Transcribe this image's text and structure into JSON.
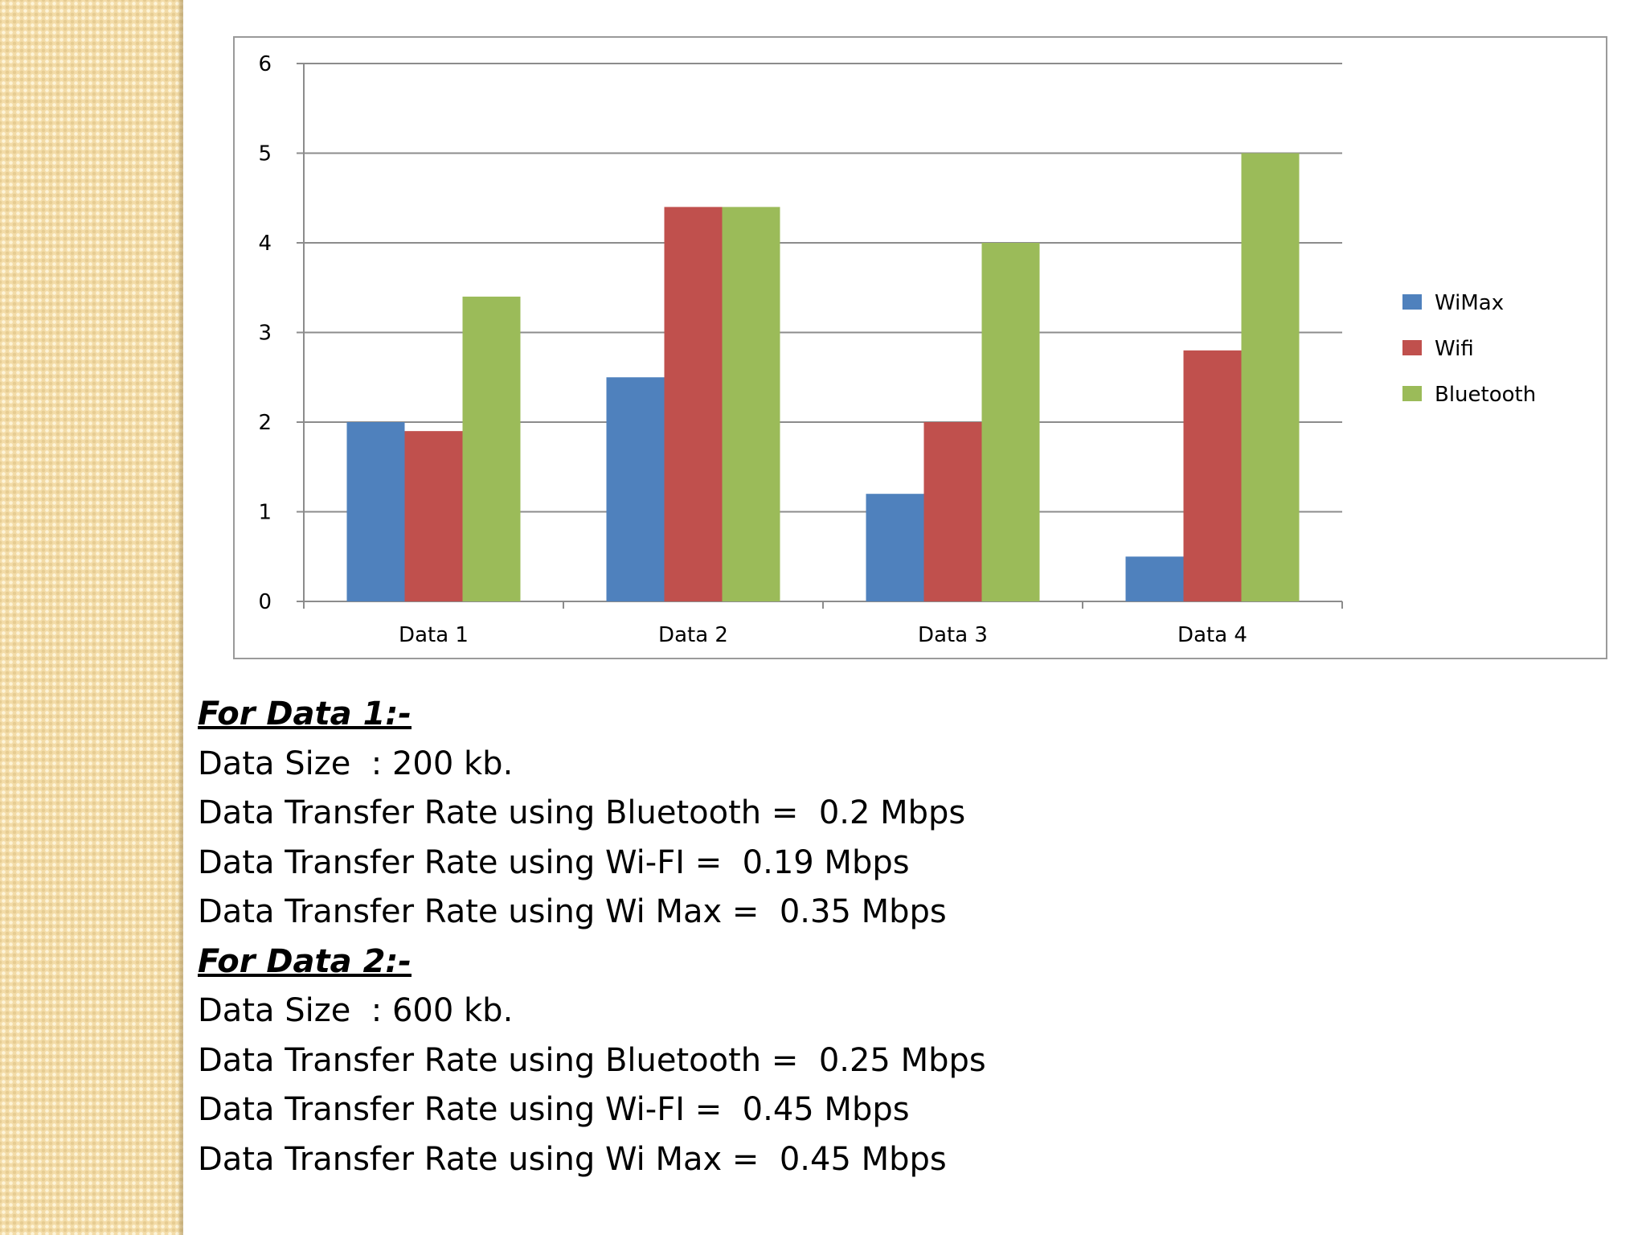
{
  "colors": {
    "wimax": "#4f81bd",
    "wifi": "#c0504d",
    "bluetooth": "#9bbb59"
  },
  "chart_data": {
    "type": "bar",
    "title": "",
    "xlabel": "",
    "ylabel": "",
    "categories": [
      "Data 1",
      "Data 2",
      "Data 3",
      "Data 4"
    ],
    "series": [
      {
        "name": "WiMax",
        "color": "#4f81bd",
        "values": [
          2.0,
          2.5,
          1.2,
          0.5
        ]
      },
      {
        "name": "Wifi",
        "color": "#c0504d",
        "values": [
          1.9,
          4.4,
          2.0,
          2.8
        ]
      },
      {
        "name": "Bluetooth",
        "color": "#9bbb59",
        "values": [
          3.4,
          4.4,
          4.0,
          5.0
        ]
      }
    ],
    "ylim": [
      0,
      6
    ],
    "yticks": [
      "0",
      "1",
      "2",
      "3",
      "4",
      "5",
      "6"
    ],
    "grid": true,
    "legend_position": "right"
  },
  "notes": {
    "data1": {
      "heading": "For Data 1:-",
      "size": "Data Size  : 200 kb.",
      "bluetooth": "Data Transfer Rate using Bluetooth =  0.2 Mbps",
      "wifi": "Data Transfer Rate using Wi-FI =  0.19 Mbps",
      "wimax": "Data Transfer Rate using Wi Max =  0.35 Mbps"
    },
    "data2": {
      "heading": "For Data 2:-",
      "size": "Data Size  : 600 kb.",
      "bluetooth": "Data Transfer Rate using Bluetooth =  0.25 Mbps",
      "wifi": "Data Transfer Rate using Wi-FI =  0.45 Mbps",
      "wimax": "Data Transfer Rate using Wi Max =  0.45 Mbps"
    }
  }
}
